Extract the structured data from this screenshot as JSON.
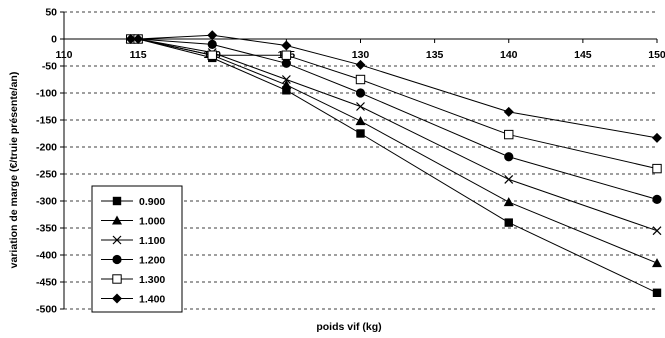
{
  "chart_data": {
    "type": "line",
    "xlabel": "poids vif (kg)",
    "ylabel": "variation de marge (€/truie présente/an)",
    "xlim": [
      110,
      150
    ],
    "ylim": [
      -500,
      50
    ],
    "x_ticks": [
      "110",
      "115",
      "120",
      "125",
      "130",
      "135",
      "140",
      "145",
      "150"
    ],
    "y_ticks": [
      "50",
      "0",
      "-50",
      "-100",
      "-150",
      "-200",
      "-250",
      "-300",
      "-350",
      "-400",
      "-450",
      "-500"
    ],
    "grid": "horizontal dashed",
    "legend_position": "bottom-left",
    "x": [
      114.5,
      115,
      120,
      125,
      130,
      140,
      150
    ],
    "series": [
      {
        "name": "0.900",
        "marker": "square-filled",
        "values": [
          0,
          0,
          -35,
          -95,
          -175,
          -340,
          -470
        ]
      },
      {
        "name": "1.000",
        "marker": "triangle-filled",
        "values": [
          0,
          0,
          -30,
          -85,
          -152,
          -302,
          -415
        ]
      },
      {
        "name": "1.100",
        "marker": "cross",
        "values": [
          0,
          0,
          -25,
          -75,
          -125,
          -260,
          -355
        ]
      },
      {
        "name": "1.200",
        "marker": "circle-filled",
        "values": [
          0,
          0,
          -10,
          -45,
          -100,
          -218,
          -297
        ]
      },
      {
        "name": "1.300",
        "marker": "square-open",
        "values": [
          0,
          0,
          -30,
          -30,
          -75,
          -177,
          -240
        ]
      },
      {
        "name": "1.400",
        "marker": "diamond-filled",
        "values": [
          0,
          0,
          7,
          -12,
          -48,
          -135,
          -183
        ]
      }
    ]
  }
}
